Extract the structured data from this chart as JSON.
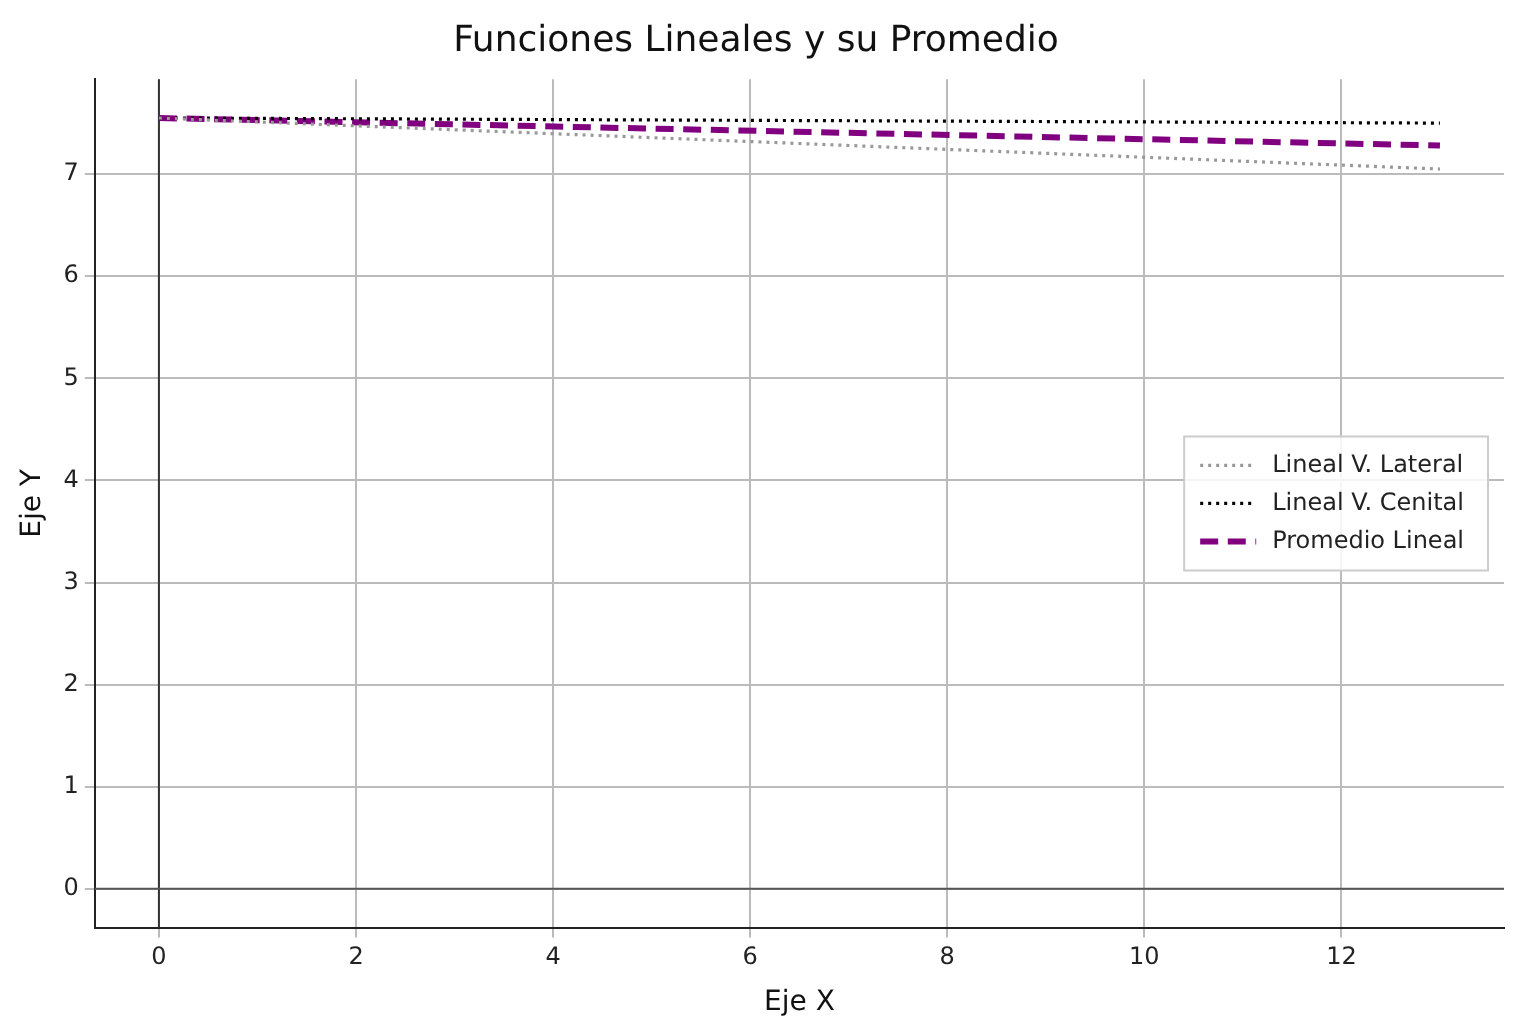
{
  "chart_data": {
    "type": "line",
    "title": "Funciones Lineales y su Promedio",
    "xlabel": "Eje X",
    "ylabel": "Eje Y",
    "x": [
      0,
      13
    ],
    "series": [
      {
        "name": "Lineal V. Lateral",
        "color": "#999999",
        "values": [
          7.55,
          7.05
        ],
        "line_style": "dotted"
      },
      {
        "name": "Lineal V. Cenital",
        "color": "#000000",
        "values": [
          7.55,
          7.5
        ],
        "line_style": "dotted"
      },
      {
        "name": "Promedio Lineal",
        "color": "#800080",
        "values": [
          7.55,
          7.28
        ],
        "line_style": "dashed"
      }
    ],
    "xlim": [
      -0.65,
      13.65
    ],
    "xticks": [
      0,
      2,
      4,
      6,
      8,
      10,
      12
    ],
    "ylim": [
      -0.38,
      7.93
    ],
    "yticks": [
      0,
      1,
      2,
      3,
      4,
      5,
      6,
      7
    ],
    "ref_lines": [
      {
        "axis": "x",
        "value": 0,
        "color": "#333333"
      },
      {
        "axis": "y",
        "value": 0,
        "color": "#555555"
      }
    ],
    "grid": true,
    "legend": "right",
    "marker": "none"
  }
}
